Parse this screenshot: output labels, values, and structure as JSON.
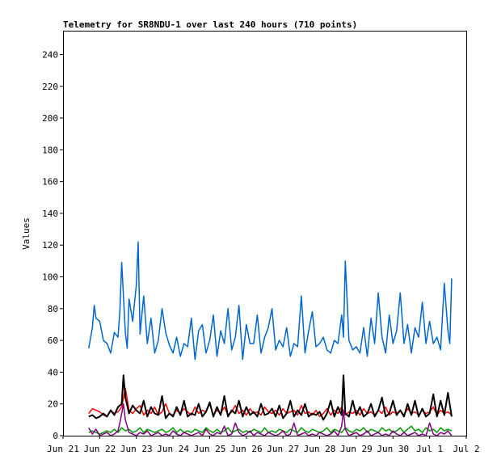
{
  "chart_data": {
    "type": "line",
    "title": "Telemetry for SR8NDU-1 over last 240 hours (710 points)",
    "ylabel": "Values",
    "xlabel": "",
    "ylim": [
      0,
      255
    ],
    "xlim": [
      0,
      11
    ],
    "grid": false,
    "legend": "none",
    "x_ticks": [
      {
        "v": 0,
        "label": "Jun 21"
      },
      {
        "v": 1,
        "label": "Jun 22"
      },
      {
        "v": 2,
        "label": "Jun 23"
      },
      {
        "v": 3,
        "label": "Jun 24"
      },
      {
        "v": 4,
        "label": "Jun 25"
      },
      {
        "v": 5,
        "label": "Jun 26"
      },
      {
        "v": 6,
        "label": "Jun 27"
      },
      {
        "v": 7,
        "label": "Jun 28"
      },
      {
        "v": 8,
        "label": "Jun 29"
      },
      {
        "v": 9,
        "label": "Jun 30"
      },
      {
        "v": 10,
        "label": "Jul 1"
      },
      {
        "v": 11,
        "label": "Jul 2"
      }
    ],
    "y_ticks": [
      0,
      20,
      40,
      60,
      80,
      100,
      120,
      140,
      160,
      180,
      200,
      220,
      240
    ],
    "series": [
      {
        "color": "#0066cc",
        "x": [
          0.7,
          0.8,
          0.85,
          0.9,
          1.0,
          1.1,
          1.2,
          1.3,
          1.4,
          1.5,
          1.55,
          1.6,
          1.7,
          1.75,
          1.8,
          1.9,
          2.0,
          2.05,
          2.1,
          2.2,
          2.3,
          2.4,
          2.5,
          2.6,
          2.7,
          2.8,
          2.9,
          3.0,
          3.1,
          3.2,
          3.3,
          3.4,
          3.5,
          3.6,
          3.7,
          3.8,
          3.9,
          4.0,
          4.1,
          4.2,
          4.3,
          4.4,
          4.5,
          4.6,
          4.7,
          4.8,
          4.9,
          5.0,
          5.1,
          5.2,
          5.3,
          5.4,
          5.5,
          5.6,
          5.7,
          5.8,
          5.9,
          6.0,
          6.1,
          6.2,
          6.3,
          6.4,
          6.5,
          6.6,
          6.7,
          6.8,
          6.9,
          7.0,
          7.1,
          7.2,
          7.3,
          7.4,
          7.5,
          7.6,
          7.65,
          7.7,
          7.8,
          7.9,
          8.0,
          8.1,
          8.2,
          8.3,
          8.4,
          8.5,
          8.6,
          8.7,
          8.8,
          8.9,
          9.0,
          9.1,
          9.2,
          9.3,
          9.4,
          9.5,
          9.6,
          9.7,
          9.8,
          9.9,
          10.0,
          10.1,
          10.2,
          10.3,
          10.4,
          10.5,
          10.55,
          10.6
        ],
        "values": [
          55,
          68,
          82,
          74,
          72,
          60,
          58,
          52,
          65,
          62,
          78,
          109,
          65,
          55,
          86,
          72,
          95,
          122,
          64,
          88,
          58,
          74,
          52,
          60,
          80,
          65,
          57,
          52,
          62,
          50,
          58,
          56,
          74,
          48,
          66,
          70,
          52,
          60,
          76,
          50,
          66,
          58,
          80,
          54,
          62,
          82,
          48,
          70,
          58,
          58,
          76,
          52,
          62,
          68,
          80,
          54,
          60,
          56,
          68,
          50,
          58,
          56,
          88,
          52,
          66,
          78,
          56,
          58,
          62,
          54,
          52,
          60,
          58,
          76,
          62,
          110,
          60,
          54,
          56,
          52,
          68,
          50,
          74,
          58,
          90,
          62,
          52,
          76,
          58,
          66,
          90,
          58,
          70,
          52,
          68,
          62,
          84,
          58,
          72,
          58,
          62,
          54,
          96,
          66,
          58,
          99
        ]
      },
      {
        "color": "#ff0000",
        "x": [
          0.7,
          0.8,
          0.9,
          1.0,
          1.1,
          1.2,
          1.3,
          1.4,
          1.5,
          1.6,
          1.7,
          1.8,
          1.9,
          2.0,
          2.1,
          2.2,
          2.3,
          2.4,
          2.5,
          2.6,
          2.7,
          2.8,
          2.9,
          3.0,
          3.1,
          3.2,
          3.3,
          3.4,
          3.5,
          3.6,
          3.7,
          3.8,
          3.9,
          4.0,
          4.1,
          4.2,
          4.3,
          4.4,
          4.5,
          4.6,
          4.7,
          4.8,
          4.9,
          5.0,
          5.1,
          5.2,
          5.3,
          5.4,
          5.5,
          5.6,
          5.7,
          5.8,
          5.9,
          6.0,
          6.1,
          6.2,
          6.3,
          6.4,
          6.5,
          6.6,
          6.7,
          6.8,
          6.9,
          7.0,
          7.1,
          7.2,
          7.3,
          7.4,
          7.5,
          7.6,
          7.7,
          7.8,
          7.9,
          8.0,
          8.1,
          8.2,
          8.3,
          8.4,
          8.5,
          8.6,
          8.7,
          8.8,
          8.9,
          9.0,
          9.1,
          9.2,
          9.3,
          9.4,
          9.5,
          9.6,
          9.7,
          9.8,
          9.9,
          10.0,
          10.1,
          10.2,
          10.3,
          10.4,
          10.5,
          10.6
        ],
        "values": [
          14,
          17,
          16,
          15,
          13,
          12,
          16,
          14,
          15,
          18,
          30,
          16,
          14,
          17,
          19,
          13,
          16,
          14,
          18,
          13,
          15,
          20,
          14,
          13,
          16,
          14,
          17,
          15,
          13,
          18,
          14,
          16,
          15,
          20,
          13,
          16,
          14,
          18,
          13,
          15,
          19,
          14,
          16,
          13,
          17,
          14,
          15,
          13,
          18,
          15,
          14,
          16,
          13,
          17,
          14,
          15,
          16,
          13,
          19,
          14,
          15,
          13,
          16,
          12,
          14,
          17,
          13,
          16,
          14,
          18,
          13,
          15,
          14,
          16,
          13,
          17,
          14,
          15,
          13,
          16,
          14,
          18,
          13,
          15,
          14,
          16,
          13,
          17,
          14,
          15,
          13,
          16,
          14,
          15,
          18,
          13,
          16,
          14,
          15,
          13
        ]
      },
      {
        "color": "#000000",
        "x": [
          0.7,
          0.8,
          0.9,
          1.0,
          1.1,
          1.2,
          1.3,
          1.4,
          1.5,
          1.6,
          1.65,
          1.7,
          1.8,
          1.9,
          2.0,
          2.1,
          2.2,
          2.3,
          2.4,
          2.5,
          2.6,
          2.7,
          2.8,
          2.9,
          3.0,
          3.1,
          3.2,
          3.3,
          3.4,
          3.5,
          3.6,
          3.7,
          3.8,
          3.9,
          4.0,
          4.1,
          4.2,
          4.3,
          4.4,
          4.5,
          4.6,
          4.7,
          4.8,
          4.9,
          5.0,
          5.1,
          5.2,
          5.3,
          5.4,
          5.5,
          5.6,
          5.7,
          5.8,
          5.9,
          6.0,
          6.1,
          6.2,
          6.3,
          6.4,
          6.5,
          6.6,
          6.7,
          6.8,
          6.9,
          7.0,
          7.1,
          7.2,
          7.3,
          7.4,
          7.5,
          7.6,
          7.65,
          7.7,
          7.8,
          7.9,
          8.0,
          8.1,
          8.2,
          8.3,
          8.4,
          8.5,
          8.6,
          8.7,
          8.8,
          8.9,
          9.0,
          9.1,
          9.2,
          9.3,
          9.4,
          9.5,
          9.6,
          9.7,
          9.8,
          9.9,
          10.0,
          10.1,
          10.2,
          10.3,
          10.4,
          10.5,
          10.6
        ],
        "values": [
          12,
          13,
          11,
          12,
          14,
          12,
          16,
          13,
          18,
          20,
          38,
          24,
          14,
          19,
          16,
          14,
          22,
          12,
          18,
          14,
          13,
          25,
          11,
          14,
          12,
          18,
          13,
          22,
          12,
          14,
          13,
          20,
          12,
          15,
          21,
          12,
          18,
          13,
          25,
          12,
          16,
          14,
          22,
          12,
          18,
          13,
          15,
          12,
          20,
          13,
          14,
          17,
          12,
          19,
          11,
          14,
          22,
          12,
          16,
          13,
          20,
          12,
          14,
          13,
          15,
          10,
          14,
          22,
          12,
          18,
          13,
          38,
          14,
          12,
          22,
          13,
          18,
          12,
          14,
          20,
          12,
          16,
          24,
          12,
          14,
          22,
          13,
          16,
          12,
          20,
          13,
          22,
          12,
          17,
          12,
          14,
          26,
          12,
          22,
          13,
          27,
          12
        ]
      },
      {
        "color": "#009900",
        "x": [
          0.7,
          0.8,
          0.9,
          1.0,
          1.1,
          1.2,
          1.3,
          1.4,
          1.5,
          1.6,
          1.7,
          1.8,
          1.9,
          2.0,
          2.1,
          2.2,
          2.3,
          2.4,
          2.5,
          2.6,
          2.7,
          2.8,
          2.9,
          3.0,
          3.1,
          3.2,
          3.3,
          3.4,
          3.5,
          3.6,
          3.7,
          3.8,
          3.9,
          4.0,
          4.1,
          4.2,
          4.3,
          4.4,
          4.5,
          4.6,
          4.7,
          4.8,
          4.9,
          5.0,
          5.1,
          5.2,
          5.3,
          5.4,
          5.5,
          5.6,
          5.7,
          5.8,
          5.9,
          6.0,
          6.1,
          6.2,
          6.3,
          6.4,
          6.5,
          6.6,
          6.7,
          6.8,
          6.9,
          7.0,
          7.1,
          7.2,
          7.3,
          7.4,
          7.5,
          7.6,
          7.7,
          7.8,
          7.9,
          8.0,
          8.1,
          8.2,
          8.3,
          8.4,
          8.5,
          8.6,
          8.7,
          8.8,
          8.9,
          9.0,
          9.1,
          9.2,
          9.3,
          9.4,
          9.5,
          9.6,
          9.7,
          9.8,
          9.9,
          10.0,
          10.1,
          10.2,
          10.3,
          10.4,
          10.5,
          10.6
        ],
        "values": [
          2,
          3,
          2,
          1,
          2,
          3,
          2,
          4,
          2,
          5,
          3,
          4,
          2,
          3,
          5,
          2,
          4,
          3,
          2,
          3,
          4,
          2,
          3,
          5,
          2,
          4,
          2,
          3,
          2,
          4,
          3,
          2,
          5,
          3,
          2,
          4,
          2,
          3,
          5,
          2,
          3,
          4,
          2,
          3,
          2,
          4,
          3,
          2,
          5,
          2,
          3,
          2,
          4,
          3,
          2,
          4,
          3,
          2,
          5,
          3,
          2,
          4,
          3,
          2,
          3,
          5,
          2,
          4,
          3,
          2,
          5,
          3,
          2,
          4,
          3,
          5,
          2,
          4,
          3,
          2,
          5,
          3,
          4,
          2,
          3,
          5,
          2,
          4,
          6,
          3,
          4,
          2,
          5,
          3,
          4,
          2,
          5,
          3,
          4,
          3
        ]
      },
      {
        "color": "#800080",
        "x": [
          0.7,
          0.8,
          0.9,
          1.0,
          1.1,
          1.2,
          1.3,
          1.4,
          1.5,
          1.55,
          1.6,
          1.65,
          1.7,
          1.8,
          1.9,
          2.0,
          2.1,
          2.2,
          2.3,
          2.4,
          2.5,
          2.6,
          2.7,
          2.8,
          2.9,
          3.0,
          3.1,
          3.2,
          3.3,
          3.4,
          3.5,
          3.6,
          3.7,
          3.8,
          3.9,
          4.0,
          4.1,
          4.2,
          4.3,
          4.4,
          4.5,
          4.6,
          4.7,
          4.8,
          4.9,
          5.0,
          5.1,
          5.2,
          5.3,
          5.4,
          5.5,
          5.6,
          5.7,
          5.8,
          5.9,
          6.0,
          6.1,
          6.2,
          6.3,
          6.4,
          6.5,
          6.6,
          6.7,
          6.8,
          6.9,
          7.0,
          7.1,
          7.2,
          7.3,
          7.4,
          7.5,
          7.6,
          7.65,
          7.7,
          7.8,
          7.9,
          8.0,
          8.1,
          8.2,
          8.3,
          8.4,
          8.5,
          8.6,
          8.7,
          8.8,
          8.9,
          9.0,
          9.1,
          9.2,
          9.3,
          9.4,
          9.5,
          9.6,
          9.7,
          9.8,
          9.9,
          10.0,
          10.1,
          10.2,
          10.3,
          10.4,
          10.5,
          10.6
        ],
        "values": [
          5,
          1,
          4,
          0,
          1,
          2,
          0,
          1,
          3,
          8,
          14,
          20,
          10,
          2,
          1,
          0,
          2,
          1,
          3,
          0,
          1,
          2,
          0,
          1,
          0,
          3,
          1,
          0,
          2,
          1,
          0,
          1,
          2,
          0,
          4,
          1,
          0,
          2,
          1,
          6,
          0,
          1,
          8,
          2,
          0,
          1,
          3,
          0,
          2,
          1,
          0,
          2,
          1,
          0,
          1,
          3,
          0,
          1,
          8,
          0,
          1,
          2,
          0,
          1,
          0,
          2,
          1,
          0,
          1,
          3,
          0,
          6,
          16,
          4,
          0,
          1,
          2,
          0,
          1,
          3,
          0,
          1,
          2,
          0,
          1,
          0,
          3,
          1,
          0,
          2,
          0,
          1,
          2,
          0,
          1,
          0,
          8,
          1,
          0,
          2,
          1,
          3,
          0
        ]
      }
    ]
  }
}
